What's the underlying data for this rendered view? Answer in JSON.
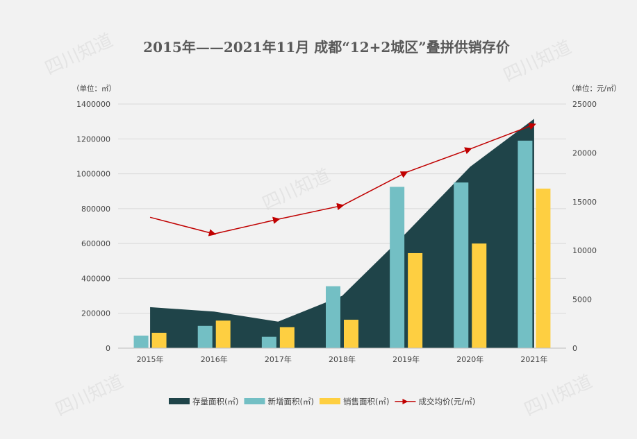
{
  "chart_data": {
    "type": "combo",
    "title": "2015年——2021年11月 成都“12+2城区”叠拼供销存价",
    "y_left_unit": "（单位：㎡）",
    "y_right_unit": "（单位：元/㎡）",
    "categories": [
      "2015年",
      "2016年",
      "2017年",
      "2018年",
      "2019年",
      "2020年",
      "2021年"
    ],
    "y_left_lim": [
      0,
      1400000
    ],
    "y_left_ticks": [
      0,
      200000,
      400000,
      600000,
      800000,
      1000000,
      1200000,
      1400000
    ],
    "y_right_lim": [
      0,
      25000
    ],
    "y_right_ticks": [
      0,
      5000,
      10000,
      15000,
      20000,
      25000
    ],
    "series": [
      {
        "name": "存量面积(㎡)",
        "type": "area",
        "axis": "left",
        "color": "#1f4449",
        "values": [
          235000,
          210000,
          152000,
          300000,
          660000,
          1040000,
          1315000
        ]
      },
      {
        "name": "新增面积(㎡)",
        "type": "bar",
        "axis": "left",
        "color": "#73bfc4",
        "values": [
          72000,
          128000,
          65000,
          355000,
          925000,
          950000,
          1190000
        ]
      },
      {
        "name": "销售面积(㎡)",
        "type": "bar",
        "axis": "left",
        "color": "#fecf41",
        "values": [
          88000,
          158000,
          120000,
          163000,
          545000,
          600000,
          915000
        ]
      },
      {
        "name": "成交均价(元/㎡)",
        "type": "line",
        "axis": "right",
        "color": "#c00000",
        "values": [
          13400,
          11700,
          13200,
          14600,
          18000,
          20400,
          22900
        ]
      }
    ],
    "legend_position": "bottom",
    "grid": true
  },
  "watermark": "四川知道"
}
